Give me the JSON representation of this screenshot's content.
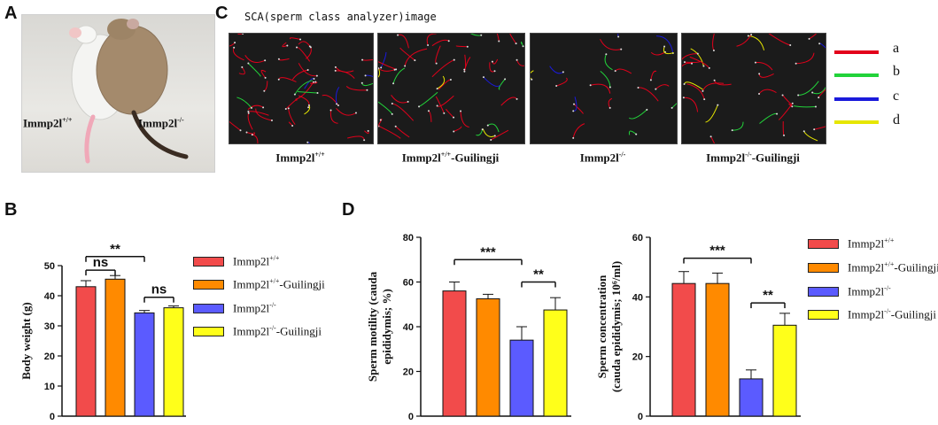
{
  "panels": {
    "A": {
      "letter": "A",
      "label_left": "Immp2l",
      "label_left_sup": "+/+",
      "label_right": "Immp2l",
      "label_right_sup": "-/-"
    },
    "B": {
      "letter": "B"
    },
    "C": {
      "letter": "C",
      "title": "SCA(sperm class analyzer)image"
    },
    "D": {
      "letter": "D"
    }
  },
  "sca_images": [
    {
      "caption": "Immp2l",
      "caption_sup": "+/+",
      "caption_suffix": ""
    },
    {
      "caption": "Immp2l",
      "caption_sup": "+/+",
      "caption_suffix": "-Guilingji"
    },
    {
      "caption": "Immp2l",
      "caption_sup": "-/-",
      "caption_suffix": ""
    },
    {
      "caption": "Immp2l",
      "caption_sup": "-/-",
      "caption_suffix": "-Guilingji"
    }
  ],
  "track_key": [
    {
      "label": "a",
      "color": "#e3001b"
    },
    {
      "label": "b",
      "color": "#22d33a"
    },
    {
      "label": "c",
      "color": "#1a1adb"
    },
    {
      "label": "d",
      "color": "#e6e600"
    }
  ],
  "group_colors": [
    "#f24b4b",
    "#ff8a00",
    "#5b5bff",
    "#ffff1a"
  ],
  "legend_B": [
    {
      "base": "Immp2l",
      "sup": "+/+",
      "suffix": ""
    },
    {
      "base": "Immp2l",
      "sup": "+/+",
      "suffix": "-Guilingji"
    },
    {
      "base": "Immp2l",
      "sup": "-/-",
      "suffix": ""
    },
    {
      "base": "Immp2l",
      "sup": "-/-",
      "suffix": "-Guilingji"
    }
  ],
  "legend_D": [
    {
      "base": "Immp2l",
      "sup": "+/+",
      "suffix": ""
    },
    {
      "base": "Immp2l",
      "sup": "+/+",
      "suffix": "-Guilingji"
    },
    {
      "base": "Immp2l",
      "sup": "-/-",
      "suffix": ""
    },
    {
      "base": "Immp2l",
      "sup": "-/-",
      "suffix": "-Guilingji"
    }
  ],
  "chart_data": [
    {
      "id": "body-weight",
      "type": "bar",
      "ylabel": "Body weight (g)",
      "ylim": [
        0,
        50
      ],
      "yticks": [
        0,
        10,
        20,
        30,
        40,
        50
      ],
      "values": [
        43.0,
        45.5,
        34.3,
        36.0
      ],
      "errors": [
        2.0,
        1.2,
        0.8,
        0.6
      ],
      "significance": [
        {
          "from": 0,
          "to": 2,
          "label": "**",
          "y": 53
        },
        {
          "from": 0,
          "to": 1,
          "label": "ns",
          "y": 48.5
        },
        {
          "from": 2,
          "to": 3,
          "label": "ns",
          "y": 39.5
        }
      ]
    },
    {
      "id": "sperm-motility",
      "type": "bar",
      "ylabel_line1": "Sperm motility (cauda",
      "ylabel_line2": "epididymis; %)",
      "ylim": [
        0,
        80
      ],
      "yticks": [
        0,
        20,
        40,
        60,
        80
      ],
      "values": [
        56.0,
        52.5,
        34.0,
        47.5
      ],
      "errors": [
        4.0,
        2.0,
        6.0,
        5.5
      ],
      "significance": [
        {
          "from": 0,
          "to": 2,
          "label": "***",
          "y": 70
        },
        {
          "from": 2,
          "to": 3,
          "label": "**",
          "y": 60
        }
      ]
    },
    {
      "id": "sperm-concentration",
      "type": "bar",
      "ylabel_line1": "Sperm concentration",
      "ylabel_line2": "(cauda epididymis; 10⁶/ml)",
      "ylim": [
        0,
        60
      ],
      "yticks": [
        0,
        20,
        40,
        60
      ],
      "values": [
        44.5,
        44.5,
        12.5,
        30.5
      ],
      "errors": [
        4.0,
        3.5,
        3.0,
        4.0
      ],
      "significance": [
        {
          "from": 0,
          "to": 2,
          "label": "***",
          "y": 53
        },
        {
          "from": 2,
          "to": 3,
          "label": "**",
          "y": 38
        }
      ]
    }
  ]
}
